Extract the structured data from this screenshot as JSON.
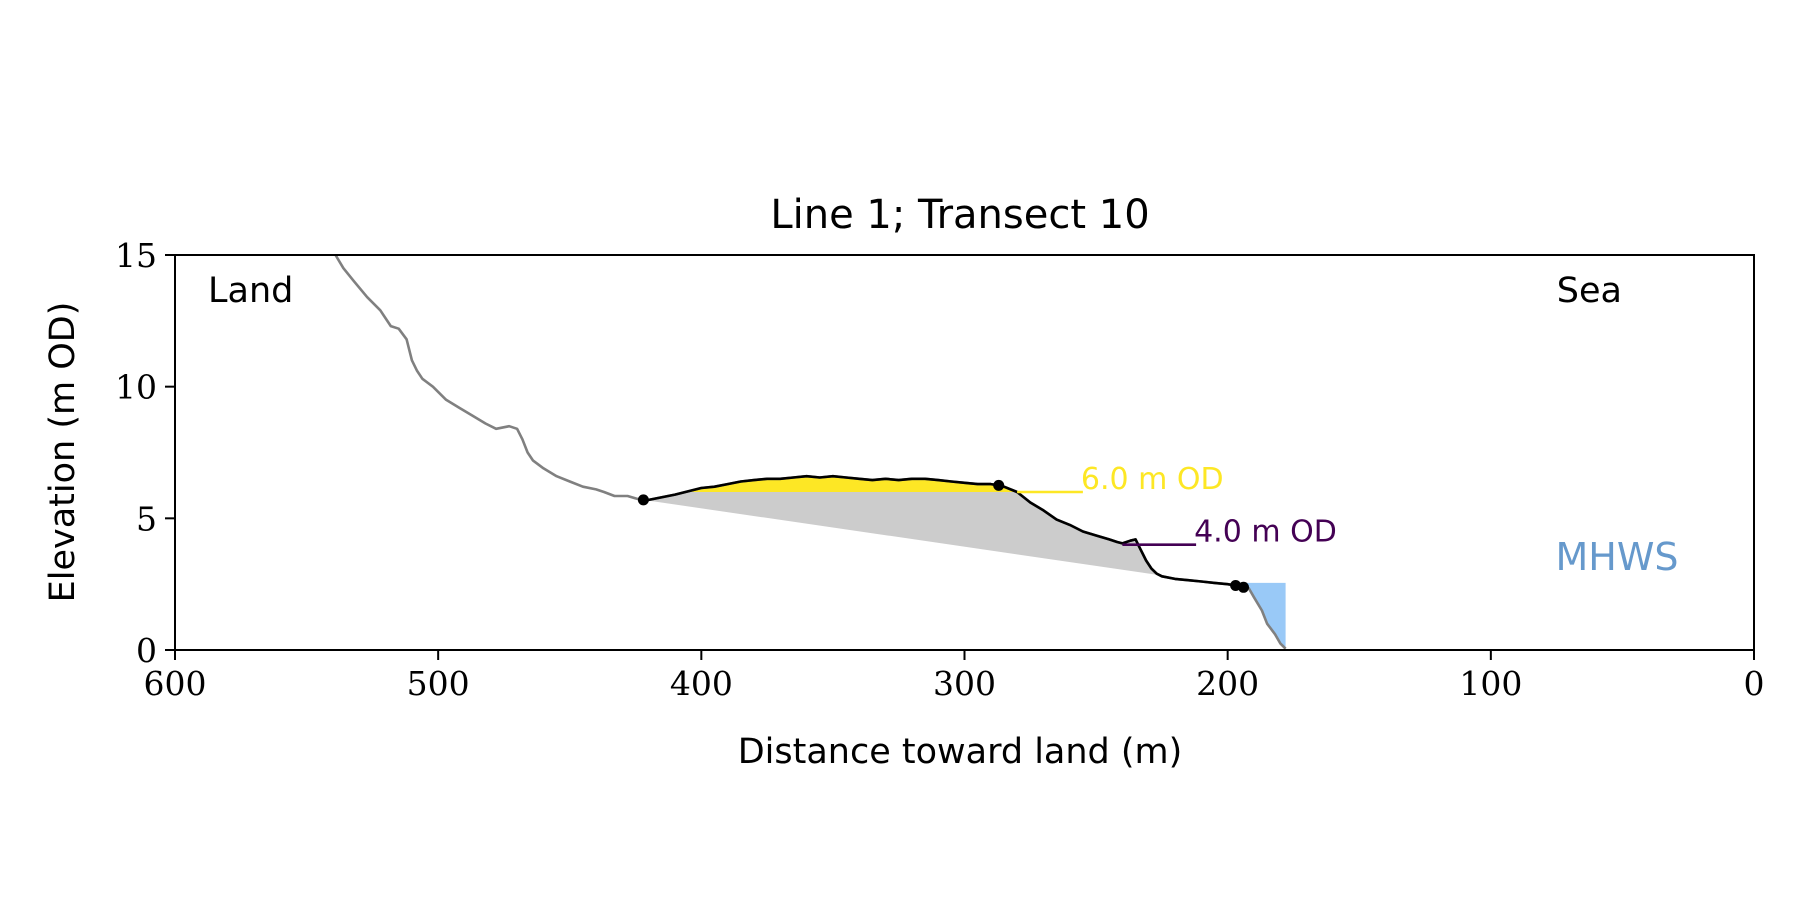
{
  "chart_data": {
    "type": "line",
    "title": "Line 1; Transect 10",
    "xlabel": "Distance toward land (m)",
    "ylabel": "Elevation (m OD)",
    "xlim": [
      600,
      0
    ],
    "ylim": [
      0,
      15
    ],
    "x_reversed": true,
    "grid": false,
    "x_ticks": [
      {
        "value": 600,
        "label": "600"
      },
      {
        "value": 500,
        "label": "500"
      },
      {
        "value": 400,
        "label": "400"
      },
      {
        "value": 300,
        "label": "300"
      },
      {
        "value": 200,
        "label": "200"
      },
      {
        "value": 100,
        "label": "100"
      },
      {
        "value": 0,
        "label": "0"
      }
    ],
    "y_ticks": [
      {
        "value": 0,
        "label": "0"
      },
      {
        "value": 5,
        "label": "5"
      },
      {
        "value": 10,
        "label": "10"
      },
      {
        "value": 15,
        "label": "15"
      }
    ],
    "corner_labels": {
      "left": "Land",
      "right": "Sea"
    },
    "colors": {
      "full_profile": "#808080",
      "dune_segment": "#000000",
      "volume_fill": "#cccccc",
      "above_6m_fill": "#fde725",
      "mhws_fill": "#99c9f7",
      "mhws_text": "#6699cc",
      "level_6m": "#fde725",
      "level_4m": "#440154"
    },
    "series": [
      {
        "role": "full_profile",
        "x": [
          539,
          536,
          532,
          527,
          522,
          518,
          515,
          512,
          510,
          508,
          506,
          502,
          497,
          492,
          487,
          482,
          478,
          473,
          470,
          468,
          466,
          464,
          460,
          455,
          450,
          445,
          440,
          437,
          433,
          428,
          423,
          420,
          410,
          400,
          395,
          390,
          385,
          380,
          375,
          370,
          365,
          360,
          355,
          350,
          345,
          340,
          335,
          330,
          325,
          320,
          315,
          310,
          305,
          300,
          295,
          290,
          287,
          285,
          280,
          275,
          270,
          265,
          260,
          255,
          250,
          245,
          242,
          240,
          237,
          235,
          233,
          231,
          229,
          227,
          225,
          220,
          215,
          210,
          205,
          200,
          197,
          195,
          192,
          190,
          187,
          185,
          182,
          180,
          178
        ],
        "y": [
          15.0,
          14.5,
          14.0,
          13.4,
          12.9,
          12.3,
          12.2,
          11.8,
          11.0,
          10.6,
          10.3,
          10.0,
          9.5,
          9.2,
          8.9,
          8.6,
          8.4,
          8.5,
          8.4,
          8.0,
          7.5,
          7.2,
          6.9,
          6.6,
          6.4,
          6.2,
          6.1,
          6.0,
          5.85,
          5.85,
          5.7,
          5.7,
          5.9,
          6.15,
          6.2,
          6.3,
          6.4,
          6.45,
          6.5,
          6.5,
          6.55,
          6.6,
          6.55,
          6.6,
          6.55,
          6.5,
          6.45,
          6.5,
          6.45,
          6.5,
          6.5,
          6.45,
          6.4,
          6.35,
          6.3,
          6.3,
          6.25,
          6.2,
          6.0,
          5.6,
          5.3,
          4.95,
          4.75,
          4.5,
          4.35,
          4.2,
          4.1,
          4.05,
          4.15,
          4.2,
          3.8,
          3.4,
          3.1,
          2.9,
          2.8,
          2.7,
          2.65,
          2.6,
          2.55,
          2.5,
          2.45,
          2.4,
          2.35,
          2.0,
          1.5,
          1.0,
          0.6,
          0.25,
          0.05
        ]
      },
      {
        "role": "dune_segment",
        "x": [
          422,
          420,
          410,
          400,
          395,
          390,
          385,
          380,
          375,
          370,
          365,
          360,
          355,
          350,
          345,
          340,
          335,
          330,
          325,
          320,
          315,
          310,
          305,
          300,
          295,
          290,
          287,
          285,
          280,
          275,
          270,
          265,
          260,
          255,
          250,
          245,
          242,
          240,
          237,
          235,
          233,
          231,
          229,
          227,
          225,
          220,
          215,
          210,
          205,
          200,
          197,
          195,
          192
        ],
        "y": [
          5.7,
          5.7,
          5.9,
          6.15,
          6.2,
          6.3,
          6.4,
          6.45,
          6.5,
          6.5,
          6.55,
          6.6,
          6.55,
          6.6,
          6.55,
          6.5,
          6.45,
          6.5,
          6.45,
          6.5,
          6.5,
          6.45,
          6.4,
          6.35,
          6.3,
          6.3,
          6.25,
          6.2,
          6.0,
          5.6,
          5.3,
          4.95,
          4.75,
          4.5,
          4.35,
          4.2,
          4.1,
          4.05,
          4.15,
          4.2,
          3.8,
          3.4,
          3.1,
          2.9,
          2.8,
          2.7,
          2.65,
          2.6,
          2.55,
          2.5,
          2.45,
          2.4,
          2.35
        ]
      }
    ],
    "markers": [
      {
        "x": 422,
        "y": 5.7
      },
      {
        "x": 287,
        "y": 6.25
      },
      {
        "x": 197,
        "y": 2.45
      },
      {
        "x": 194,
        "y": 2.38
      }
    ],
    "levels": [
      {
        "y": 6.0,
        "x_start": 280,
        "x_end": 255,
        "label": "6.0 m OD",
        "color": "#fde725"
      },
      {
        "y": 4.0,
        "x_start": 240,
        "x_end": 212,
        "label": "4.0 m OD",
        "color": "#440154"
      }
    ],
    "mhws": {
      "label": "MHWS",
      "level": 2.55,
      "x_start": 197,
      "x_end": 178
    }
  }
}
